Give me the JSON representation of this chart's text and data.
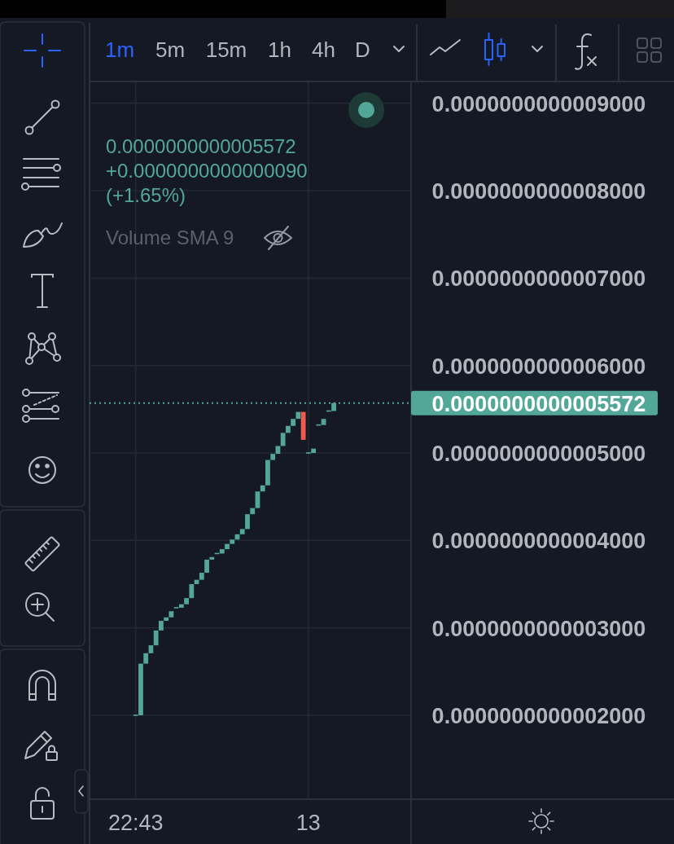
{
  "chart_data": {
    "type": "candlestick",
    "categories": [
      "22:43",
      null,
      null,
      null,
      null,
      null,
      null,
      null,
      null,
      null,
      null,
      null,
      null,
      null,
      null,
      null,
      null,
      null,
      null,
      null,
      null,
      null,
      null,
      null,
      null,
      null,
      null,
      null,
      null,
      null,
      null,
      null,
      null,
      null,
      "13",
      null,
      null,
      null,
      null,
      null
    ],
    "ohlc": [
      [
        2e-13,
        2e-13,
        2e-13,
        2e-13
      ],
      [
        2e-13,
        2.59e-13,
        2e-13,
        2.59e-13
      ],
      [
        2.59e-13,
        2.71e-13,
        2.59e-13,
        2.71e-13
      ],
      [
        2.71e-13,
        2.8e-13,
        2.71e-13,
        2.8e-13
      ],
      [
        2.8e-13,
        2.97e-13,
        2.8e-13,
        2.97e-13
      ],
      [
        2.97e-13,
        3.08e-13,
        2.97e-13,
        3.08e-13
      ],
      [
        3.08e-13,
        3.12e-13,
        3.08e-13,
        3.12e-13
      ],
      [
        3.12e-13,
        3.19e-13,
        3.12e-13,
        3.19e-13
      ],
      [
        3.23e-13,
        3.23e-13,
        3.23e-13,
        3.23e-13
      ],
      [
        3.23e-13,
        3.27e-13,
        3.23e-13,
        3.27e-13
      ],
      [
        3.27e-13,
        3.34e-13,
        3.27e-13,
        3.34e-13
      ],
      [
        3.34e-13,
        3.5e-13,
        3.34e-13,
        3.5e-13
      ],
      [
        3.5e-13,
        3.55e-13,
        3.5e-13,
        3.55e-13
      ],
      [
        3.55e-13,
        3.63e-13,
        3.55e-13,
        3.63e-13
      ],
      [
        3.63e-13,
        3.78e-13,
        3.63e-13,
        3.78e-13
      ],
      [
        3.78e-13,
        3.81e-13,
        3.78e-13,
        3.81e-13
      ],
      [
        3.85e-13,
        3.85e-13,
        3.85e-13,
        3.85e-13
      ],
      [
        3.85e-13,
        3.9e-13,
        3.85e-13,
        3.9e-13
      ],
      [
        3.9e-13,
        3.96e-13,
        3.9e-13,
        3.96e-13
      ],
      [
        3.96e-13,
        4.01e-13,
        3.96e-13,
        4.01e-13
      ],
      [
        4.01e-13,
        4.07e-13,
        4.01e-13,
        4.07e-13
      ],
      [
        4.07e-13,
        4.13e-13,
        4.07e-13,
        4.13e-13
      ],
      [
        4.13e-13,
        4.3e-13,
        4.13e-13,
        4.3e-13
      ],
      [
        4.3e-13,
        4.37e-13,
        4.3e-13,
        4.37e-13
      ],
      [
        4.37e-13,
        4.56e-13,
        4.37e-13,
        4.56e-13
      ],
      [
        4.56e-13,
        4.63e-13,
        4.56e-13,
        4.63e-13
      ],
      [
        4.63e-13,
        4.92e-13,
        4.63e-13,
        4.92e-13
      ],
      [
        4.92e-13,
        4.99e-13,
        4.92e-13,
        4.99e-13
      ],
      [
        4.99e-13,
        5.08e-13,
        4.99e-13,
        5.08e-13
      ],
      [
        5.08e-13,
        5.23e-13,
        5.08e-13,
        5.23e-13
      ],
      [
        5.23e-13,
        5.31e-13,
        5.23e-13,
        5.31e-13
      ],
      [
        5.31e-13,
        5.39e-13,
        5.31e-13,
        5.39e-13
      ],
      [
        5.39e-13,
        5.47e-13,
        5.39e-13,
        5.47e-13
      ],
      [
        5.47e-13,
        5.47e-13,
        5.15e-13,
        5.15e-13
      ],
      [
        5e-13,
        5e-13,
        5e-13,
        5e-13
      ],
      [
        5e-13,
        5.05e-13,
        5e-13,
        5.05e-13
      ],
      [
        5.32e-13,
        5.32e-13,
        5.32e-13,
        5.32e-13
      ],
      [
        5.32e-13,
        5.39e-13,
        5.32e-13,
        5.39e-13
      ],
      [
        5.48e-13,
        5.48e-13,
        5.48e-13,
        5.48e-13
      ],
      [
        5.48e-13,
        5.572e-13,
        5.48e-13,
        5.572e-13
      ]
    ],
    "colors": [
      "#53a798",
      "#53a798",
      "#53a798",
      "#53a798",
      "#53a798",
      "#53a798",
      "#53a798",
      "#53a798",
      "#53a798",
      "#53a798",
      "#53a798",
      "#53a798",
      "#53a798",
      "#53a798",
      "#53a798",
      "#53a798",
      "#53a798",
      "#53a798",
      "#53a798",
      "#53a798",
      "#53a798",
      "#53a798",
      "#53a798",
      "#53a798",
      "#53a798",
      "#53a798",
      "#53a798",
      "#53a798",
      "#53a798",
      "#53a798",
      "#53a798",
      "#53a798",
      "#53a798",
      "#ee5a4f",
      "#53a798",
      "#53a798",
      "#53a798",
      "#53a798",
      "#53a798",
      "#53a798"
    ],
    "ylim": [
      1.04e-13,
      9.24e-13
    ],
    "yticks": [
      {
        "value": 2e-13,
        "label": "0.0000000000002000"
      },
      {
        "value": 3e-13,
        "label": "0.0000000000003000"
      },
      {
        "value": 4e-13,
        "label": "0.0000000000004000"
      },
      {
        "value": 5e-13,
        "label": "0.0000000000005000"
      },
      {
        "value": 6e-13,
        "label": "0.0000000000006000"
      },
      {
        "value": 7e-13,
        "label": "0.0000000000007000"
      },
      {
        "value": 8e-13,
        "label": "0.0000000000008000"
      },
      {
        "value": 9e-13,
        "label": "0.0000000000009000"
      }
    ],
    "grid": true,
    "ref_lines": [
      {
        "axis": "y",
        "value": 5.572e-13,
        "label": "0.0000000000005572",
        "color": "#53a798",
        "line_style": "dotted"
      }
    ],
    "annotations": [
      "1m",
      "5m",
      "15m",
      "1h",
      "4h",
      "D",
      "0.0000000000005572",
      "+0.0000000000000090",
      "(+1.65%)",
      "Volume SMA 9"
    ]
  }
}
